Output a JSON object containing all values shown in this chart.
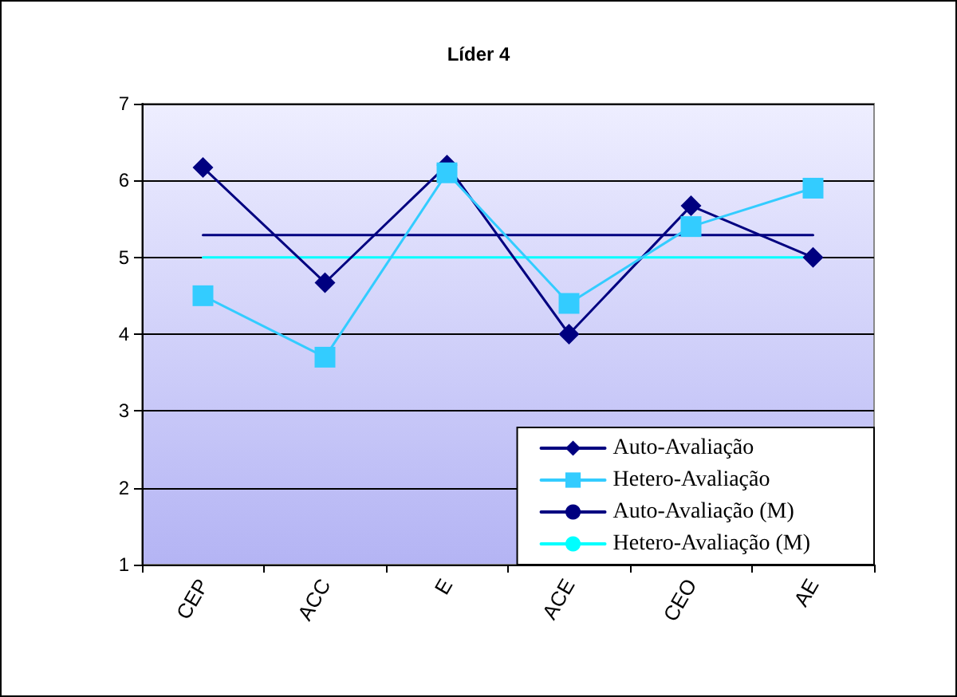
{
  "chart_data": {
    "type": "line",
    "title": "Líder 4",
    "categories": [
      "CEP",
      "ACC",
      "E",
      "ACE",
      "CEO",
      "AE"
    ],
    "series": [
      {
        "name": "Auto-Avaliação",
        "color": "#000080",
        "marker": "diamond",
        "values": [
          6.17,
          4.67,
          6.2,
          4.0,
          5.67,
          5.0
        ]
      },
      {
        "name": "Hetero-Avaliação",
        "color": "#33ccff",
        "marker": "square",
        "values": [
          4.5,
          3.7,
          6.1,
          4.4,
          5.4,
          5.9
        ]
      },
      {
        "name": "Auto-Avaliação (M)",
        "color": "#000080",
        "marker": "none",
        "values": [
          5.29,
          5.29,
          5.29,
          5.29,
          5.29,
          5.29
        ]
      },
      {
        "name": "Hetero-Avaliação (M)",
        "color": "#00ffff",
        "marker": "none",
        "values": [
          5.0,
          5.0,
          5.0,
          5.0,
          5.0,
          5.0
        ]
      }
    ],
    "ylim": [
      1,
      7
    ],
    "yticks": [
      1,
      2,
      3,
      4,
      5,
      6,
      7
    ],
    "grid": "y",
    "legend": "bottom right",
    "line_style": "solid"
  }
}
